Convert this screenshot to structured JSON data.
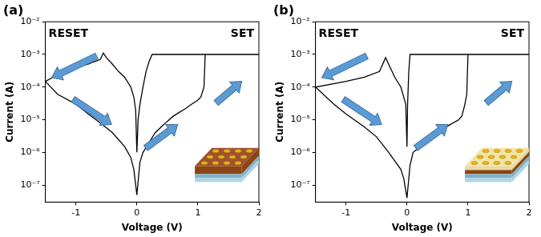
{
  "chart_data": [
    {
      "type": "line",
      "title": "(a)",
      "annotations": [
        "RESET",
        "SET"
      ],
      "x_label": "Voltage (V)",
      "y_label": "Current (A)",
      "x": [
        0,
        0.05,
        0.1,
        0.2,
        0.3,
        0.4,
        0.5,
        0.6,
        0.7,
        0.8,
        0.9,
        1.0,
        1.05,
        1.1,
        1.12,
        1.5,
        2.0,
        1.5,
        1.0,
        0.5,
        0.25,
        0.2,
        0.15,
        0.1,
        0.05,
        0.02,
        0.0,
        -0.02,
        -0.05,
        -0.1,
        -0.2,
        -0.3,
        -0.4,
        -0.5,
        -0.55,
        -0.6,
        -0.7,
        -0.8,
        -1.0,
        -1.2,
        -1.5,
        -1.3,
        -1.0,
        -0.8,
        -0.6,
        -0.4,
        -0.2,
        -0.1,
        -0.05,
        0
      ],
      "values": [
        5e-08,
        5e-07,
        1e-06,
        2e-06,
        4e-06,
        6e-06,
        9e-06,
        1.3e-05,
        1.7e-05,
        2.2e-05,
        3e-05,
        4e-05,
        5e-05,
        0.0001,
        0.001,
        0.001,
        0.001,
        0.001,
        0.001,
        0.001,
        0.001,
        0.0006,
        0.0003,
        0.0001,
        3e-05,
        1e-05,
        1e-06,
        2e-05,
        5e-05,
        0.0001,
        0.0002,
        0.0003,
        0.0005,
        0.0008,
        0.0011,
        0.0007,
        0.0006,
        0.0005,
        0.0004,
        0.0003,
        0.00015,
        6e-05,
        3e-05,
        1.5e-05,
        8e-06,
        4e-06,
        1.5e-06,
        7e-07,
        3e-07,
        5e-08
      ],
      "color": "#000000",
      "xlim": [
        -1.5,
        2
      ],
      "xticks": [
        -1,
        0,
        1,
        2
      ],
      "ylim": [
        3e-08,
        0.01
      ],
      "yticks": [
        {
          "value": 1e-07,
          "label": "10⁻⁷"
        },
        {
          "value": 1e-06,
          "label": "10⁻⁶"
        },
        {
          "value": 1e-05,
          "label": "10⁻⁵"
        },
        {
          "value": 0.0001,
          "label": "10⁻⁴"
        },
        {
          "value": 0.001,
          "label": "10⁻³"
        },
        {
          "value": 0.01,
          "label": "10⁻²"
        }
      ],
      "log": "y",
      "grid": false
    },
    {
      "type": "line",
      "title": "(b)",
      "annotations": [
        "RESET",
        "SET"
      ],
      "x_label": "Voltage (V)",
      "y_label": "Current (A)",
      "x": [
        0,
        0.05,
        0.1,
        0.3,
        0.5,
        0.7,
        0.85,
        0.9,
        0.95,
        0.98,
        1.0,
        1.5,
        2.0,
        1.5,
        1.0,
        0.5,
        0.1,
        0.05,
        0.03,
        0.01,
        0.0,
        -0.02,
        -0.1,
        -0.2,
        -0.3,
        -0.35,
        -0.45,
        -0.7,
        -1.0,
        -1.5,
        -1.2,
        -1.0,
        -0.7,
        -0.5,
        -0.3,
        -0.1,
        -0.05,
        0
      ],
      "values": [
        4e-08,
        4e-07,
        1e-06,
        2e-06,
        4e-06,
        7e-06,
        1e-05,
        1.3e-05,
        3e-05,
        6e-05,
        0.001,
        0.001,
        0.001,
        0.001,
        0.001,
        0.001,
        0.001,
        0.001,
        0.0003,
        3e-05,
        1.5e-06,
        3e-05,
        0.0001,
        0.0002,
        0.0005,
        0.0008,
        0.0003,
        0.0002,
        0.00015,
        0.0001,
        3e-05,
        1.5e-05,
        6e-06,
        3e-06,
        1e-06,
        3e-07,
        1.5e-07,
        4e-08
      ],
      "color": "#000000",
      "xlim": [
        -1.5,
        2
      ],
      "xticks": [
        -1,
        0,
        1,
        2
      ],
      "ylim": [
        3e-08,
        0.01
      ],
      "yticks": [
        {
          "value": 1e-07,
          "label": "10⁻⁷"
        },
        {
          "value": 1e-06,
          "label": "10⁻⁶"
        },
        {
          "value": 1e-05,
          "label": "10⁻⁵"
        },
        {
          "value": 0.0001,
          "label": "10⁻⁴"
        },
        {
          "value": 0.001,
          "label": "10⁻³"
        },
        {
          "value": 0.01,
          "label": "10⁻²"
        }
      ],
      "log": "y",
      "grid": false
    }
  ]
}
